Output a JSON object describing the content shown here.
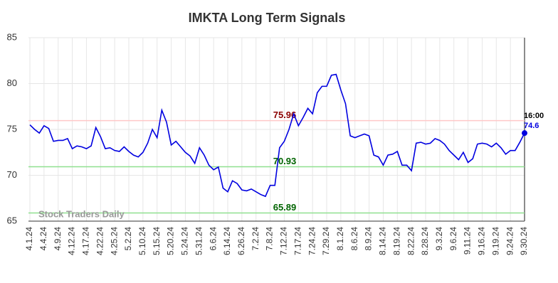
{
  "chart_data": {
    "type": "line",
    "title": "IMKTA Long Term Signals",
    "categories": [
      "4.1.24",
      null,
      null,
      "4.4.24",
      null,
      null,
      "4.9.24",
      null,
      null,
      "4.12.24",
      null,
      null,
      "4.17.24",
      null,
      null,
      "4.22.24",
      null,
      null,
      "4.25.24",
      null,
      null,
      "5.2.24",
      null,
      null,
      "5.10.24",
      null,
      null,
      "5.15.24",
      null,
      null,
      "5.20.24",
      null,
      null,
      "5.24.24",
      null,
      null,
      "5.31.24",
      null,
      null,
      "6.6.24",
      null,
      null,
      "6.14.24",
      null,
      null,
      "6.26.24",
      null,
      null,
      "7.2.24",
      null,
      null,
      "7.8.24",
      null,
      null,
      "7.12.24",
      null,
      null,
      "7.17.24",
      null,
      null,
      "7.24.24",
      null,
      null,
      "7.29.24",
      null,
      null,
      "8.1.24",
      null,
      null,
      "8.6.24",
      null,
      null,
      "8.9.24",
      null,
      null,
      "8.14.24",
      null,
      null,
      "8.19.24",
      null,
      null,
      "8.22.24",
      null,
      null,
      "8.28.24",
      null,
      null,
      "9.3.24",
      null,
      null,
      "9.6.24",
      null,
      null,
      "9.11.24",
      null,
      null,
      "9.16.24",
      null,
      null,
      "9.19.24",
      null,
      null,
      "9.24.24",
      null,
      null,
      "9.30.24"
    ],
    "values": [
      75.5,
      75.0,
      74.6,
      75.4,
      75.1,
      73.7,
      73.8,
      73.8,
      74.0,
      72.9,
      73.2,
      73.1,
      72.9,
      73.2,
      75.2,
      74.2,
      72.9,
      73.0,
      72.7,
      72.6,
      73.1,
      72.6,
      72.2,
      72.0,
      72.5,
      73.5,
      75.0,
      74.1,
      77.1,
      75.8,
      73.3,
      73.7,
      73.1,
      72.5,
      72.1,
      71.3,
      73.0,
      72.2,
      71.1,
      70.6,
      70.9,
      68.6,
      68.2,
      69.4,
      69.1,
      68.4,
      68.3,
      68.5,
      68.2,
      67.9,
      67.7,
      68.9,
      68.9,
      73.0,
      73.7,
      75.0,
      76.7,
      75.4,
      76.3,
      77.3,
      76.7,
      79.0,
      79.7,
      79.7,
      80.9,
      81.0,
      79.3,
      77.8,
      74.3,
      74.1,
      74.3,
      74.5,
      74.3,
      72.2,
      72.0,
      71.1,
      72.2,
      72.3,
      72.6,
      71.1,
      71.1,
      70.5,
      73.5,
      73.6,
      73.4,
      73.5,
      74.0,
      73.8,
      73.4,
      72.7,
      72.2,
      71.7,
      72.5,
      71.4,
      71.8,
      73.4,
      73.5,
      73.4,
      73.1,
      73.5,
      73.0,
      72.3,
      72.7,
      72.7,
      73.6,
      74.6
    ],
    "color": "#0000e0",
    "ylim": [
      65,
      85
    ],
    "yticks": [
      65,
      70,
      75,
      80,
      85
    ],
    "grid": true,
    "hlines": [
      {
        "value": 75.96,
        "color": "#ffc8c8",
        "label_color": "#8b0000"
      },
      {
        "value": 70.93,
        "color": "#90e090",
        "label_color": "#006400"
      },
      {
        "value": 65.89,
        "color": "#90e090",
        "label_color": "#006400"
      }
    ],
    "last_point_time": "16:00",
    "watermark": "Stock Traders Daily"
  }
}
